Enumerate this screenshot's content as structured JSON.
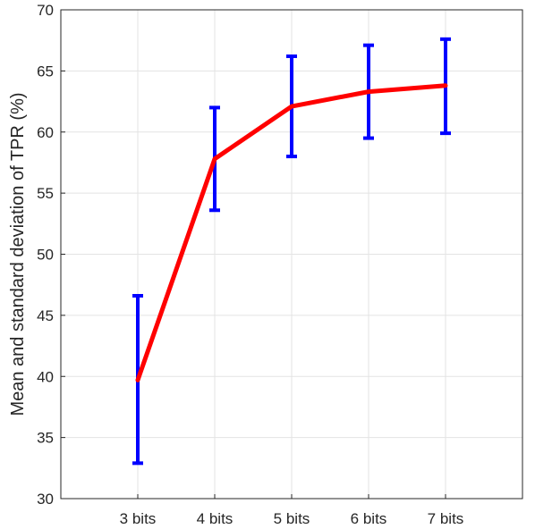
{
  "chart_data": {
    "type": "line",
    "title": "",
    "xlabel": "",
    "ylabel": "Mean and standard deviation of TPR (%)",
    "categories": [
      "3 bits",
      "4 bits",
      "5 bits",
      "6 bits",
      "7 bits"
    ],
    "x_positions": [
      3,
      4,
      5,
      6,
      7
    ],
    "xlim": [
      2,
      8
    ],
    "ylim": [
      30,
      70
    ],
    "yticks": [
      30,
      35,
      40,
      45,
      50,
      55,
      60,
      65,
      70
    ],
    "grid": true,
    "series": [
      {
        "values": [
          39.7,
          57.8,
          62.1,
          63.3,
          63.8
        ],
        "error_low": [
          32.9,
          53.6,
          58.0,
          59.5,
          59.9
        ],
        "error_high": [
          46.6,
          62.0,
          66.2,
          67.1,
          67.6
        ],
        "line_color": "#ff0000",
        "errorbar_color": "#0000ff"
      }
    ]
  }
}
